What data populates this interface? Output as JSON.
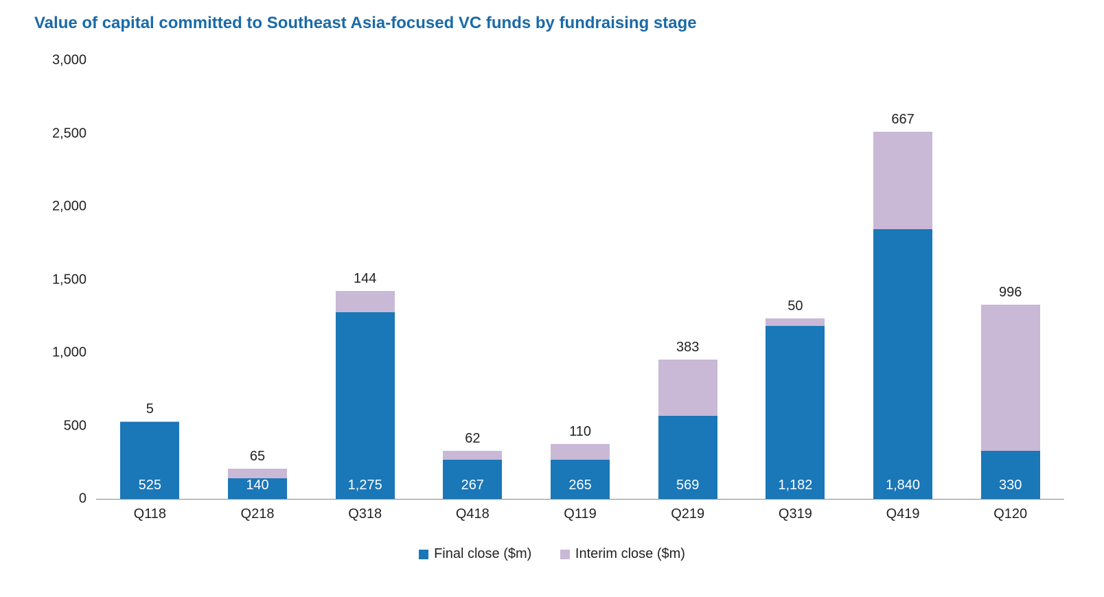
{
  "chart": {
    "type": "stacked-bar",
    "title": "Value of capital committed to Southeast Asia-focused VC funds by fundraising stage",
    "title_color": "#1a6aa8",
    "title_fontsize": 24,
    "title_fontweight": 700,
    "background_color": "#ffffff",
    "axis_color": "#888888",
    "text_color": "#222222",
    "label_fontsize": 20,
    "value_label_fontsize": 20,
    "value_label_color_inside": "#ffffff",
    "value_label_color_above": "#222222",
    "bar_width_ratio": 0.55,
    "ylim": [
      0,
      3000
    ],
    "ytick_step": 500,
    "yticks": [
      "0",
      "500",
      "1,000",
      "1,500",
      "2,000",
      "2,500",
      "3,000"
    ],
    "categories": [
      "Q118",
      "Q218",
      "Q318",
      "Q418",
      "Q119",
      "Q219",
      "Q319",
      "Q419",
      "Q120"
    ],
    "series": [
      {
        "key": "final",
        "label": "Final close ($m)",
        "color": "#1a77b8"
      },
      {
        "key": "interim",
        "label": "Interim close ($m)",
        "color": "#c9b8d6"
      }
    ],
    "data": [
      {
        "final": 525,
        "interim": 5,
        "final_label": "525",
        "interim_label": "5"
      },
      {
        "final": 140,
        "interim": 65,
        "final_label": "140",
        "interim_label": "65"
      },
      {
        "final": 1275,
        "interim": 144,
        "final_label": "1,275",
        "interim_label": "144"
      },
      {
        "final": 267,
        "interim": 62,
        "final_label": "267",
        "interim_label": "62"
      },
      {
        "final": 265,
        "interim": 110,
        "final_label": "265",
        "interim_label": "110"
      },
      {
        "final": 569,
        "interim": 383,
        "final_label": "569",
        "interim_label": "383"
      },
      {
        "final": 1182,
        "interim": 50,
        "final_label": "1,182",
        "interim_label": "50"
      },
      {
        "final": 1840,
        "interim": 667,
        "final_label": "1,840",
        "interim_label": "667"
      },
      {
        "final": 330,
        "interim": 996,
        "final_label": "330",
        "interim_label": "996"
      }
    ],
    "interim_label_min_inside": 200,
    "legend": {
      "swatch_size": 14,
      "position": "bottom-center"
    }
  }
}
